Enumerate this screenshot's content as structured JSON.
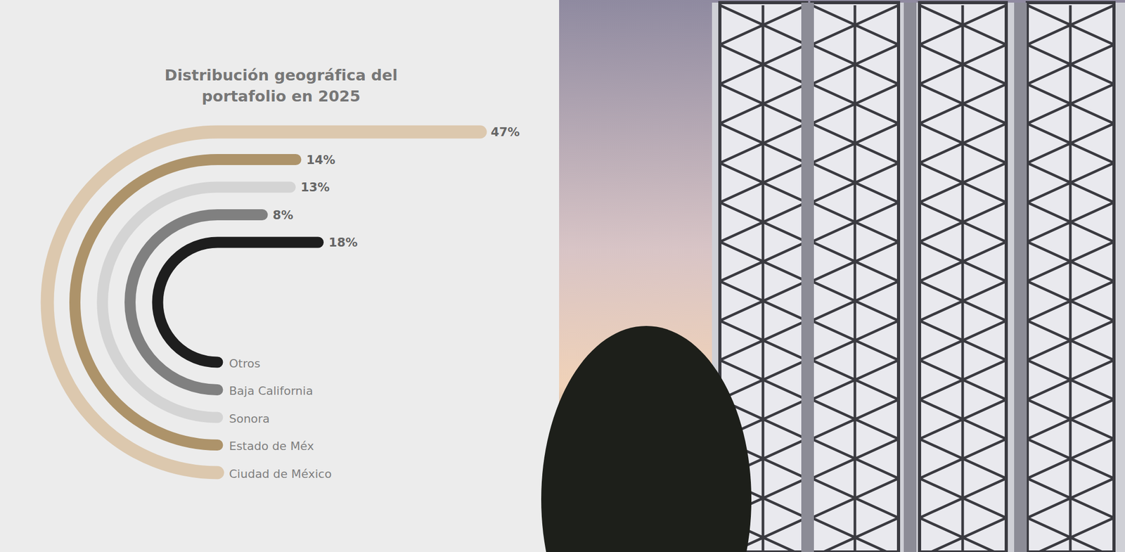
{
  "chart_data": {
    "type": "radial_bar",
    "title": "Distribución geográfica del portafolio en 2025",
    "categories": [
      "Ciudad de México",
      "Estado de Méx",
      "Sonora",
      "Baja California",
      "Otros"
    ],
    "values": [
      47,
      14,
      13,
      8,
      18
    ],
    "value_labels": [
      "47%",
      "14%",
      "13%",
      "8%",
      "18%"
    ],
    "colors": [
      "#dcc8ae",
      "#ad936a",
      "#d4d4d4",
      "#808080",
      "#1e1e1e"
    ],
    "data_labels": true,
    "tick_labels": false
  }
}
